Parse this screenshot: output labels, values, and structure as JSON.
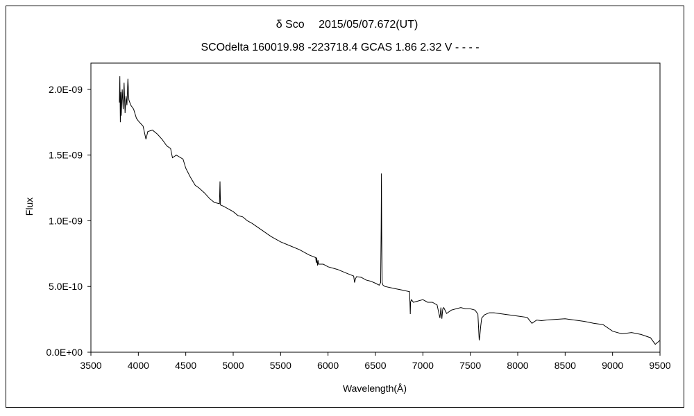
{
  "chart_data": {
    "type": "line",
    "title": "δ Sco　 2015/05/07.672(UT)",
    "subtitle": "SCOdelta 160019.98 -223718.4 GCAS 1.86 2.32 V - - - -",
    "xlabel": "Wavelength(Å)",
    "ylabel": "Flux",
    "xlim": [
      3500,
      9500
    ],
    "ylim": [
      0,
      2.2e-09
    ],
    "x_ticks": [
      3500,
      4000,
      4500,
      5000,
      5500,
      6000,
      6500,
      7000,
      7500,
      8000,
      8500,
      9000,
      9500
    ],
    "x_tick_labels": [
      "3500",
      "4000",
      "4500",
      "5000",
      "5500",
      "6000",
      "6500",
      "7000",
      "7500",
      "8000",
      "8500",
      "9000",
      "9500"
    ],
    "y_ticks": [
      0,
      5e-10,
      1e-09,
      1.5e-09,
      2e-09
    ],
    "y_tick_labels": [
      "0.0E+00",
      "5.0E-10",
      "1.0E-09",
      "1.5E-09",
      "2.0E-09"
    ],
    "grid": false,
    "series": [
      {
        "color": "#000000",
        "x": [
          3800,
          3805,
          3810,
          3815,
          3820,
          3830,
          3840,
          3850,
          3860,
          3870,
          3880,
          3890,
          3900,
          3920,
          3950,
          3980,
          4000,
          4050,
          4080,
          4100,
          4150,
          4200,
          4250,
          4300,
          4340,
          4360,
          4400,
          4471,
          4500,
          4550,
          4600,
          4640,
          4700,
          4750,
          4800,
          4855,
          4861,
          4866,
          4900,
          4950,
          5000,
          5050,
          5100,
          5150,
          5200,
          5300,
          5400,
          5500,
          5600,
          5700,
          5800,
          5870,
          5876,
          5880,
          5890,
          5895,
          5900,
          5950,
          6000,
          6100,
          6200,
          6270,
          6280,
          6290,
          6300,
          6350,
          6400,
          6450,
          6500,
          6540,
          6555,
          6560,
          6563,
          6566,
          6570,
          6580,
          6600,
          6700,
          6800,
          6860,
          6867,
          6870,
          6880,
          6900,
          6950,
          7000,
          7050,
          7100,
          7150,
          7180,
          7190,
          7200,
          7210,
          7220,
          7250,
          7300,
          7350,
          7400,
          7450,
          7500,
          7550,
          7580,
          7594,
          7600,
          7610,
          7620,
          7650,
          7700,
          7750,
          7800,
          7900,
          8000,
          8100,
          8150,
          8200,
          8250,
          8300,
          8400,
          8500,
          8600,
          8700,
          8800,
          8900,
          9000,
          9100,
          9200,
          9300,
          9400,
          9450,
          9500
        ],
        "y": [
          1.9e-09,
          2.1e-09,
          1.75e-09,
          1.98e-09,
          1.8e-09,
          2e-09,
          1.85e-09,
          2.05e-09,
          1.82e-09,
          1.95e-09,
          1.88e-09,
          2.08e-09,
          1.92e-09,
          1.88e-09,
          1.85e-09,
          1.78e-09,
          1.76e-09,
          1.72e-09,
          1.62e-09,
          1.68e-09,
          1.69e-09,
          1.66e-09,
          1.62e-09,
          1.57e-09,
          1.55e-09,
          1.48e-09,
          1.5e-09,
          1.47e-09,
          1.4e-09,
          1.33e-09,
          1.27e-09,
          1.25e-09,
          1.21e-09,
          1.17e-09,
          1.14e-09,
          1.13e-09,
          1.3e-09,
          1.12e-09,
          1.11e-09,
          1.09e-09,
          1.07e-09,
          1.04e-09,
          1.03e-09,
          1e-09,
          9.8e-10,
          9.3e-10,
          8.8e-10,
          8.4e-10,
          8.1e-10,
          7.8e-10,
          7.4e-10,
          7.2e-10,
          6.8e-10,
          7.2e-10,
          6.6e-10,
          7e-10,
          6.7e-10,
          6.7e-10,
          6.5e-10,
          6.3e-10,
          6e-10,
          5.8e-10,
          5.3e-10,
          5.6e-10,
          5.75e-10,
          5.7e-10,
          5.5e-10,
          5.4e-10,
          5.25e-10,
          5.1e-10,
          5.3e-10,
          9.5e-10,
          1.36e-09,
          9e-10,
          5.3e-10,
          5.1e-10,
          5e-10,
          4.85e-10,
          4.7e-10,
          4.6e-10,
          2.9e-10,
          3.8e-10,
          4e-10,
          3.8e-10,
          3.9e-10,
          4e-10,
          3.8e-10,
          3.8e-10,
          3.6e-10,
          2.6e-10,
          3.4e-10,
          2.55e-10,
          3.3e-10,
          3.4e-10,
          2.95e-10,
          3.2e-10,
          3.3e-10,
          3.4e-10,
          3.3e-10,
          3.3e-10,
          3.2e-10,
          2.9e-10,
          9e-11,
          1.2e-10,
          2e-10,
          2.6e-10,
          2.85e-10,
          3e-10,
          3e-10,
          2.95e-10,
          2.85e-10,
          2.75e-10,
          2.65e-10,
          2.2e-10,
          2.45e-10,
          2.4e-10,
          2.45e-10,
          2.5e-10,
          2.55e-10,
          2.45e-10,
          2.35e-10,
          2.2e-10,
          2.1e-10,
          1.6e-10,
          1.4e-10,
          1.5e-10,
          1.35e-10,
          1.1e-10,
          6e-11,
          9e-11
        ]
      }
    ]
  }
}
